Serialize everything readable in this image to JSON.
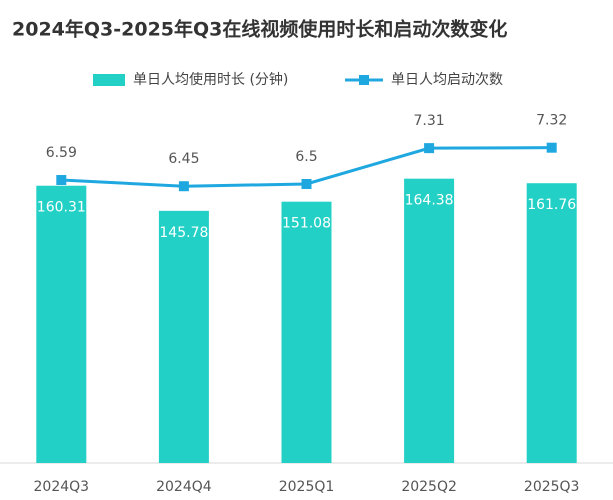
{
  "chart_data": {
    "type": "bar_line",
    "title": "2024年Q3-2025年Q3在线视频使用时长和启动次数变化",
    "categories": [
      "2024Q3",
      "2024Q4",
      "2025Q1",
      "2025Q2",
      "2025Q3"
    ],
    "series": [
      {
        "name": "单日人均使用时长 (分钟)",
        "type": "bar",
        "color": "#22d0c6",
        "values": [
          160.31,
          145.78,
          151.08,
          164.38,
          161.76
        ]
      },
      {
        "name": "单日人均启动次数",
        "type": "line",
        "axis": "y2",
        "color": "#1fa8e0",
        "values": [
          6.59,
          6.45,
          6.5,
          7.31,
          7.32
        ]
      }
    ],
    "ylim": [
      0,
      233
    ],
    "y2lim": [
      0.2,
      9.3
    ],
    "legend": "top"
  }
}
